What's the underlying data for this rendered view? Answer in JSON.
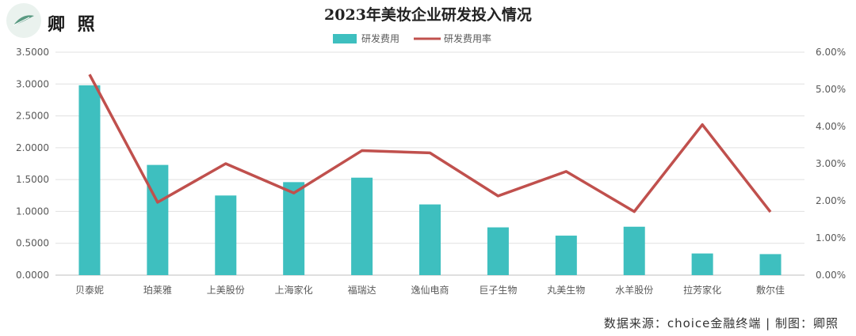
{
  "logo_text": "卿 照",
  "source_text": "数据来源：choice金融终端 | 制图：卿照",
  "colors": {
    "bar": "#3ebfbf",
    "line": "#c0504d",
    "grid": "#e0e0e0",
    "logo": "#5a9a82"
  },
  "chart_data": {
    "type": "bar",
    "title": "2023年美妆企业研发投入情况",
    "categories": [
      "贝泰妮",
      "珀莱雅",
      "上美股份",
      "上海家化",
      "福瑞达",
      "逸仙电商",
      "巨子生物",
      "丸美生物",
      "水羊股份",
      "拉芳家化",
      "敷尔佳"
    ],
    "series": [
      {
        "name": "研发费用",
        "type": "bar",
        "axis": "left",
        "values": [
          2.98,
          1.73,
          1.25,
          1.46,
          1.53,
          1.11,
          0.75,
          0.62,
          0.76,
          0.34,
          0.33
        ]
      },
      {
        "name": "研发费用率",
        "type": "line",
        "axis": "right",
        "values": [
          5.4,
          1.96,
          3.0,
          2.21,
          3.35,
          3.29,
          2.13,
          2.79,
          1.71,
          4.05,
          1.7
        ]
      }
    ],
    "y_left": {
      "min": 0,
      "max": 3.5,
      "step": 0.5,
      "ticks": [
        "0.0000",
        "0.5000",
        "1.0000",
        "1.5000",
        "2.0000",
        "2.5000",
        "3.0000",
        "3.5000"
      ]
    },
    "y_right": {
      "min": 0,
      "max": 6,
      "step": 1,
      "ticks": [
        "0.00%",
        "1.00%",
        "2.00%",
        "3.00%",
        "4.00%",
        "5.00%",
        "6.00%"
      ]
    },
    "legend_position": "top-center",
    "grid": true
  }
}
